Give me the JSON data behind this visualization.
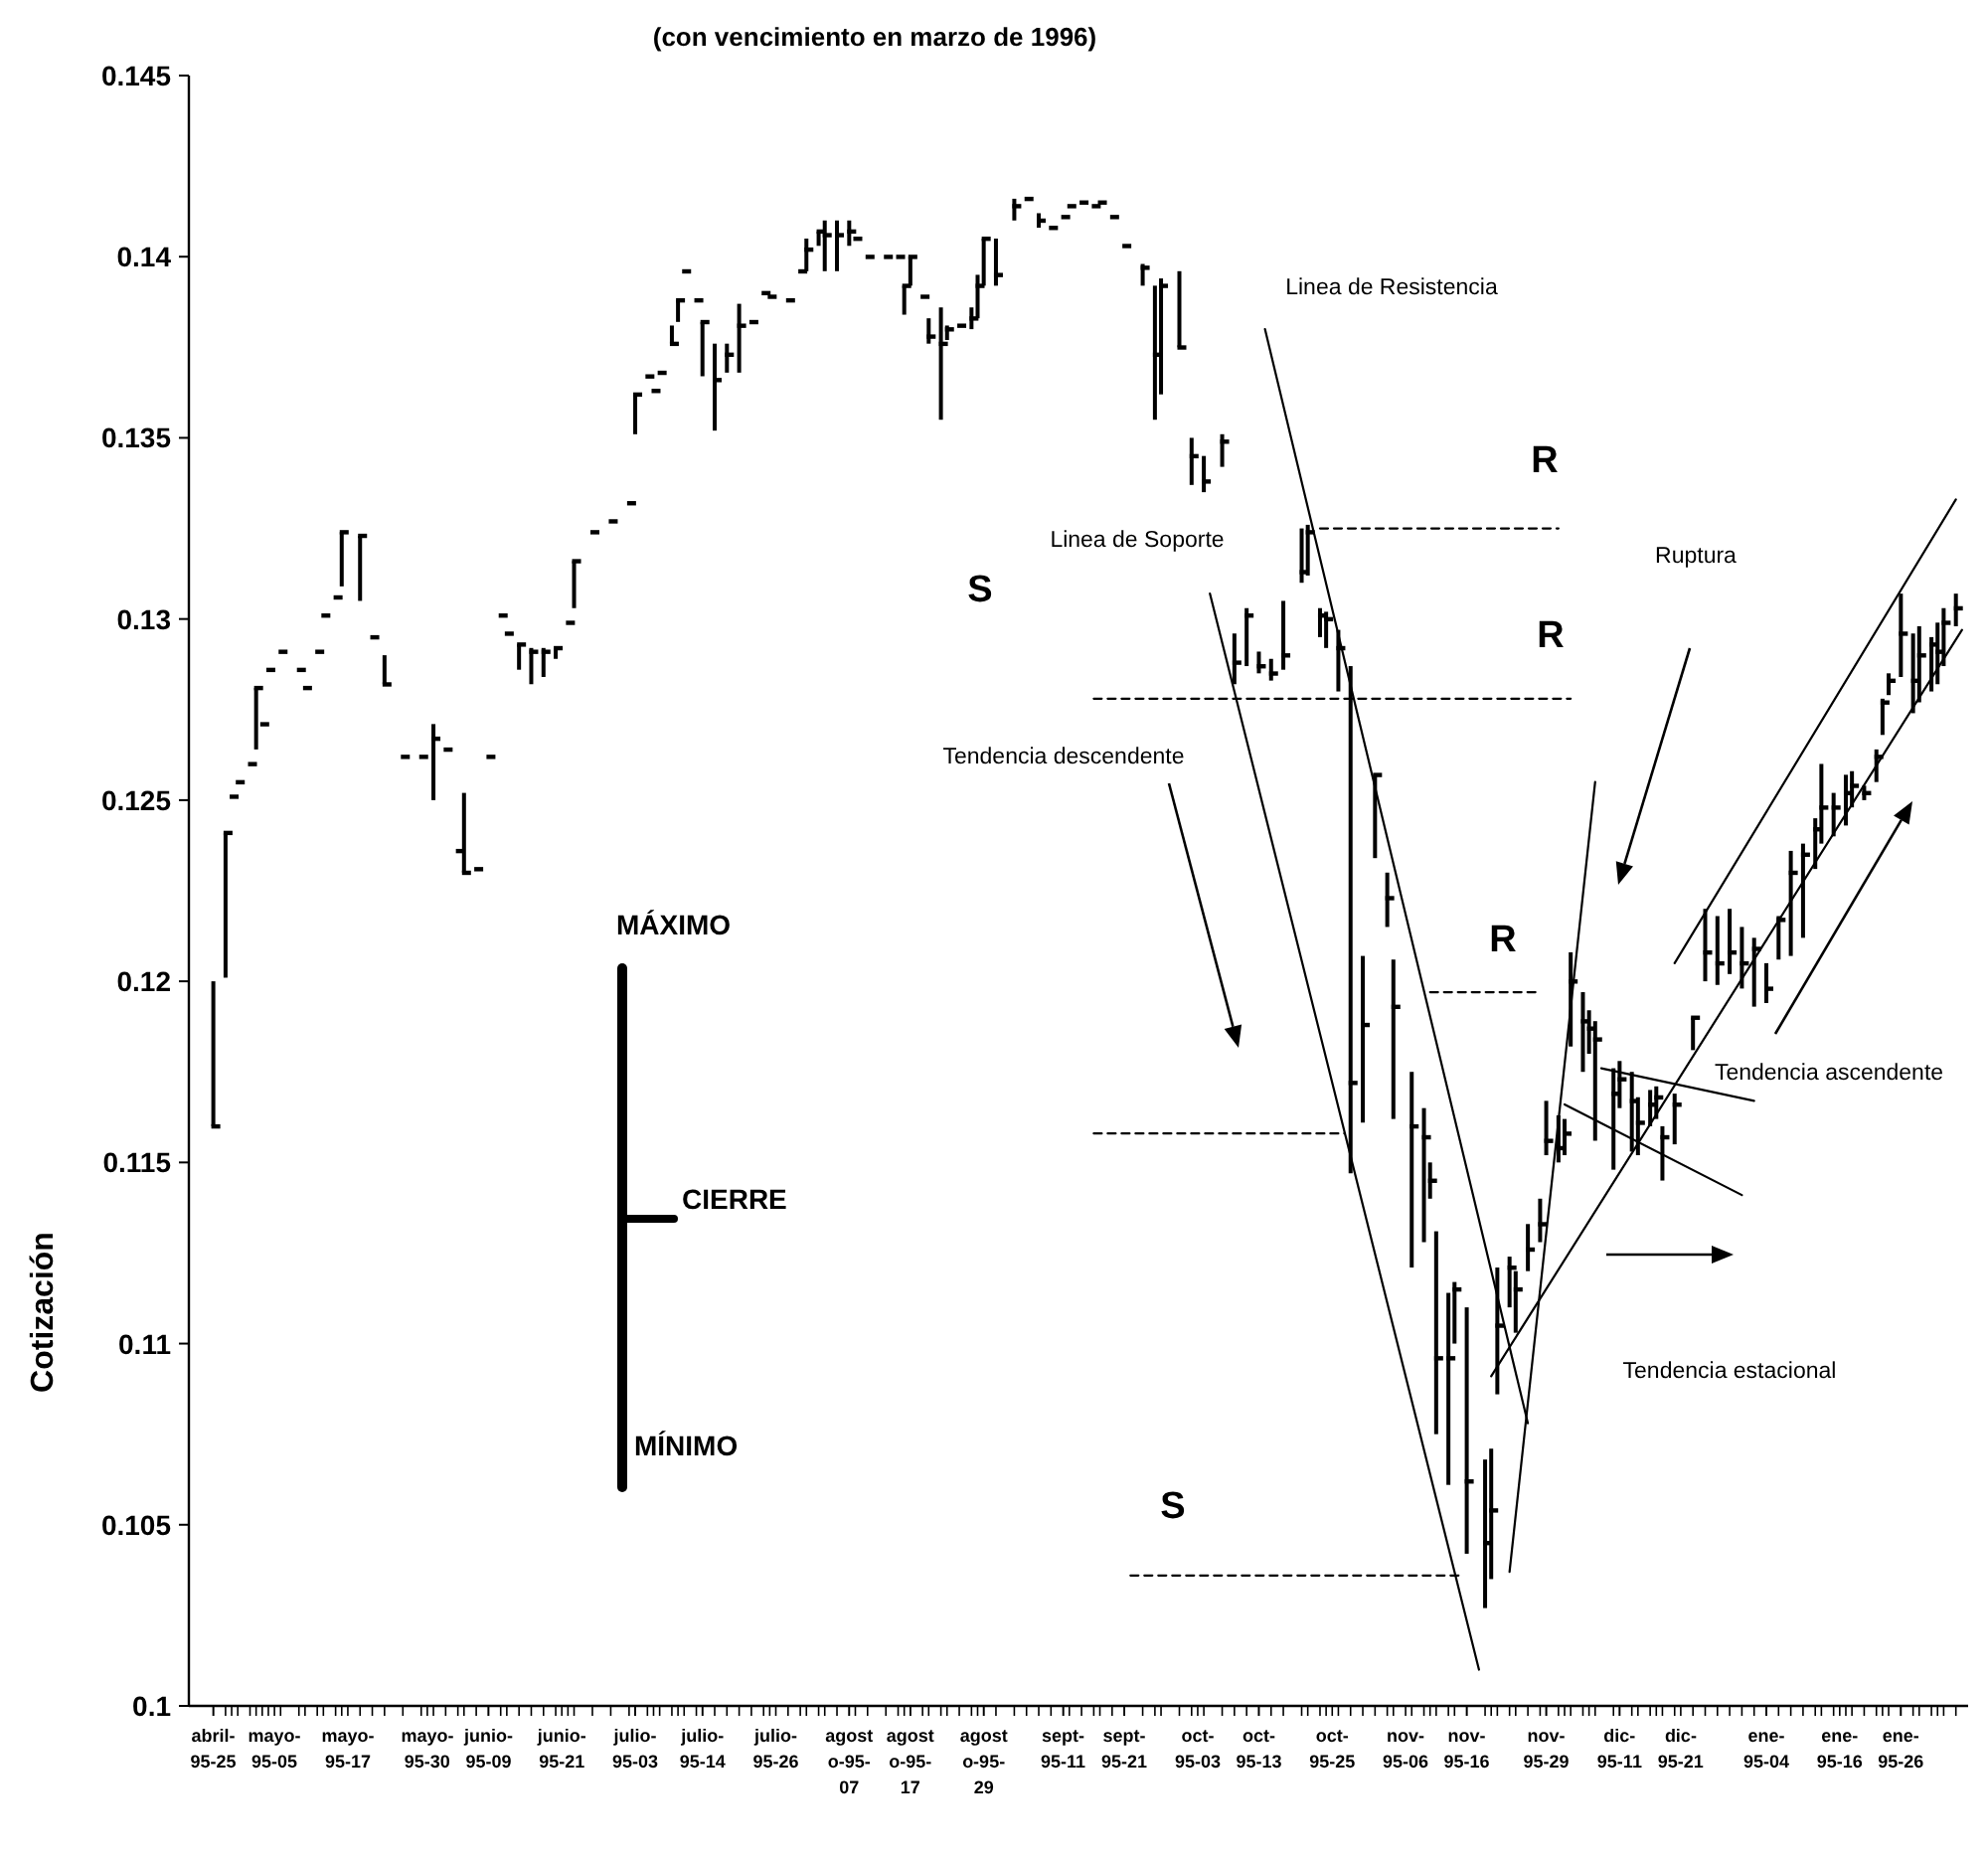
{
  "chart_data": {
    "type": "bar",
    "title": "(con vencimiento en marzo de 1996)",
    "ylabel": "Cotización",
    "x": [
      "1995-04-25",
      "1995-04-27",
      "1995-04-28",
      "1995-04-29",
      "1995-05-01",
      "1995-05-02",
      "1995-05-03",
      "1995-05-04",
      "1995-05-06",
      "1995-05-09",
      "1995-05-10",
      "1995-05-12",
      "1995-05-13",
      "1995-05-15",
      "1995-05-16",
      "1995-05-19",
      "1995-05-21",
      "1995-05-23",
      "1995-05-26",
      "1995-05-29",
      "1995-05-31",
      "1995-06-02",
      "1995-06-04",
      "1995-06-05",
      "1995-06-07",
      "1995-06-09",
      "1995-06-11",
      "1995-06-12",
      "1995-06-14",
      "1995-06-16",
      "1995-06-18",
      "1995-06-20",
      "1995-06-22",
      "1995-06-23",
      "1995-06-26",
      "1995-06-29",
      "1995-07-02",
      "1995-07-03",
      "1995-07-05",
      "1995-07-06",
      "1995-07-07",
      "1995-07-09",
      "1995-07-10",
      "1995-07-11",
      "1995-07-13",
      "1995-07-14",
      "1995-07-16",
      "1995-07-18",
      "1995-07-20",
      "1995-07-22",
      "1995-07-24",
      "1995-07-25",
      "1995-07-28",
      "1995-07-30",
      "1995-07-31",
      "1995-08-02",
      "1995-08-03",
      "1995-08-05",
      "1995-08-07",
      "1995-08-08",
      "1995-08-10",
      "1995-08-13",
      "1995-08-15",
      "1995-08-16",
      "1995-08-17",
      "1995-08-19",
      "1995-08-20",
      "1995-08-22",
      "1995-08-23",
      "1995-08-25",
      "1995-08-27",
      "1995-08-28",
      "1995-08-29",
      "1995-08-31",
      "1995-09-03",
      "1995-09-05",
      "1995-09-07",
      "1995-09-09",
      "1995-09-11",
      "1995-09-12",
      "1995-09-14",
      "1995-09-16",
      "1995-09-17",
      "1995-09-19",
      "1995-09-21",
      "1995-09-24",
      "1995-09-26",
      "1995-09-27",
      "1995-09-30",
      "1995-10-02",
      "1995-10-04",
      "1995-10-07",
      "1995-10-09",
      "1995-10-11",
      "1995-10-13",
      "1995-10-15",
      "1995-10-17",
      "1995-10-20",
      "1995-10-21",
      "1995-10-23",
      "1995-10-24",
      "1995-10-26",
      "1995-10-28",
      "1995-10-30",
      "1995-11-01",
      "1995-11-03",
      "1995-11-04",
      "1995-11-07",
      "1995-11-09",
      "1995-11-10",
      "1995-11-11",
      "1995-11-13",
      "1995-11-14",
      "1995-11-16",
      "1995-11-19",
      "1995-11-20",
      "1995-11-21",
      "1995-11-23",
      "1995-11-24",
      "1995-11-26",
      "1995-11-28",
      "1995-11-29",
      "1995-12-01",
      "1995-12-02",
      "1995-12-03",
      "1995-12-05",
      "1995-12-06",
      "1995-12-07",
      "1995-12-10",
      "1995-12-11",
      "1995-12-13",
      "1995-12-14",
      "1995-12-16",
      "1995-12-17",
      "1995-12-18",
      "1995-12-20",
      "1995-12-23",
      "1995-12-25",
      "1995-12-27",
      "1995-12-29",
      "1995-12-31",
      "1996-01-02",
      "1996-01-04",
      "1996-01-06",
      "1996-01-08",
      "1996-01-10",
      "1996-01-12",
      "1996-01-13",
      "1996-01-15",
      "1996-01-17",
      "1996-01-18",
      "1996-01-20",
      "1996-01-22",
      "1996-01-23",
      "1996-01-24",
      "1996-01-26",
      "1996-01-28",
      "1996-01-29",
      "1996-01-31",
      "1996-02-01",
      "1996-02-02",
      "1996-02-04"
    ],
    "base": [
      0.116,
      0.1201,
      null,
      null,
      null,
      0.1264,
      null,
      null,
      null,
      null,
      null,
      null,
      null,
      null,
      0.1309,
      0.1305,
      null,
      0.1282,
      null,
      null,
      0.125,
      null,
      null,
      0.123,
      null,
      null,
      null,
      null,
      0.1286,
      0.1282,
      0.1284,
      0.1289,
      null,
      0.1303,
      null,
      null,
      null,
      0.1351,
      null,
      null,
      null,
      0.1376,
      0.1382,
      null,
      null,
      0.1367,
      0.1352,
      0.1368,
      0.1368,
      null,
      null,
      null,
      null,
      null,
      0.1396,
      0.1403,
      0.1396,
      0.1396,
      0.1403,
      null,
      null,
      null,
      null,
      0.1384,
      0.1392,
      null,
      0.1376,
      0.1355,
      0.1377,
      null,
      0.138,
      0.1383,
      0.1392,
      0.1392,
      0.141,
      null,
      0.1408,
      null,
      null,
      null,
      null,
      null,
      null,
      null,
      null,
      0.1392,
      0.1355,
      0.1362,
      0.1375,
      0.1337,
      0.1335,
      0.1342,
      0.1282,
      0.1287,
      0.1285,
      0.1283,
      0.1286,
      0.131,
      0.1312,
      0.1295,
      0.1292,
      0.128,
      0.1147,
      0.1161,
      0.1234,
      0.1215,
      0.1162,
      0.1121,
      0.1128,
      0.114,
      0.1075,
      0.1061,
      0.11,
      0.1042,
      0.1027,
      0.1035,
      0.1086,
      0.111,
      0.1103,
      0.112,
      0.1128,
      0.1152,
      0.115,
      0.1152,
      0.1182,
      0.1175,
      0.118,
      0.1156,
      0.1148,
      0.1165,
      0.1153,
      0.1152,
      0.116,
      0.1162,
      0.1145,
      0.1155,
      0.1181,
      0.12,
      0.1199,
      0.1202,
      0.1198,
      0.1193,
      0.1194,
      0.1206,
      0.1207,
      0.1212,
      0.1231,
      0.1238,
      0.124,
      0.1243,
      0.1248,
      0.125,
      0.1255,
      0.1268,
      0.1279,
      0.1284,
      0.1274,
      0.1277,
      0.128,
      0.1282,
      0.1287,
      0.1298
    ],
    "color": "#000000",
    "values": [
      0.004,
      0.004,
      null,
      null,
      null,
      0.0017,
      null,
      null,
      null,
      null,
      null,
      null,
      null,
      null,
      0.0015,
      0.0018,
      null,
      0.0008,
      null,
      null,
      0.0021,
      null,
      null,
      0.0022,
      null,
      null,
      null,
      null,
      0.0007,
      0.001,
      0.0008,
      0.0003,
      null,
      0.0013,
      null,
      null,
      null,
      0.0011,
      null,
      null,
      null,
      0.0005,
      0.0006,
      null,
      null,
      0.0015,
      0.0024,
      0.0008,
      0.0019,
      null,
      null,
      null,
      null,
      null,
      0.0009,
      0.0004,
      0.0014,
      0.0014,
      0.0007,
      null,
      null,
      null,
      null,
      0.0008,
      0.0008,
      null,
      0.0007,
      0.0031,
      0.0004,
      null,
      0.0006,
      0.0012,
      0.0013,
      0.0013,
      0.0006,
      null,
      0.0004,
      null,
      null,
      null,
      null,
      null,
      null,
      null,
      null,
      0.0006,
      0.0037,
      0.0032,
      0.0021,
      0.0013,
      0.001,
      0.0009,
      0.0014,
      0.0016,
      0.0006,
      0.0006,
      0.0019,
      0.0015,
      0.0014,
      0.0008,
      0.001,
      0.0017,
      0.014,
      0.0046,
      0.0023,
      0.0015,
      0.0044,
      0.0054,
      0.0037,
      0.001,
      0.0056,
      0.0053,
      0.0017,
      0.0068,
      0.0041,
      0.0036,
      0.0035,
      0.0014,
      0.0017,
      0.0013,
      0.0012,
      0.0015,
      0.0013,
      0.001,
      0.0026,
      0.0022,
      0.0012,
      0.0033,
      0.0028,
      0.0013,
      0.0022,
      0.0016,
      0.001,
      0.0009,
      0.0015,
      0.0014,
      0.0009,
      0.002,
      0.0019,
      0.0018,
      0.0017,
      0.0019,
      0.0011,
      0.0012,
      0.0029,
      0.0026,
      0.0014,
      0.0022,
      0.0012,
      0.0014,
      0.001,
      0.0004,
      0.0009,
      0.001,
      0.0006,
      0.0023,
      0.0022,
      0.0021,
      0.0015,
      0.0017,
      0.0016,
      0.0009
    ],
    "series": [
      {
        "type": "scatter",
        "values": [
          0.116,
          0.1241,
          0.1251,
          0.1255,
          0.126,
          0.1281,
          0.1271,
          0.1286,
          0.1291,
          0.1286,
          0.1281,
          0.1291,
          0.1301,
          0.1306,
          0.1324,
          0.1323,
          0.1295,
          0.1282,
          0.1262,
          0.1262,
          0.1267,
          0.1264,
          0.1236,
          0.123,
          0.1231,
          0.1262,
          0.1301,
          0.1296,
          0.1293,
          0.1291,
          0.1291,
          0.1292,
          0.1299,
          0.1316,
          0.1324,
          0.1327,
          0.1332,
          0.1362,
          0.1367,
          0.1363,
          0.1368,
          0.1376,
          0.1388,
          0.1396,
          0.1388,
          0.1382,
          0.1366,
          0.1373,
          0.1381,
          0.1382,
          0.139,
          0.1389,
          0.1388,
          0.1396,
          0.1402,
          0.1407,
          0.1406,
          0.1406,
          0.1407,
          0.1405,
          0.14,
          0.14,
          0.14,
          0.1392,
          0.14,
          0.1389,
          0.1378,
          0.1376,
          0.138,
          0.1381,
          0.1383,
          0.1392,
          0.1405,
          0.1395,
          0.1414,
          0.1416,
          0.141,
          0.1408,
          0.1411,
          0.1414,
          0.1415,
          0.1414,
          0.1415,
          0.1411,
          0.1403,
          0.1397,
          0.1373,
          0.1392,
          0.1375,
          0.1345,
          0.1338,
          0.1349,
          0.1288,
          0.1301,
          0.1287,
          0.1285,
          0.129,
          0.1313,
          0.1324,
          0.1301,
          0.13,
          0.1292,
          0.1172,
          0.1188,
          0.1257,
          0.1223,
          0.1193,
          0.116,
          0.1157,
          0.1145,
          0.1096,
          0.1096,
          0.1115,
          0.1062,
          0.1045,
          0.1054,
          0.1105,
          0.1121,
          0.1115,
          0.1126,
          0.1133,
          0.1156,
          0.1154,
          0.1158,
          0.12,
          0.1189,
          0.1187,
          0.1184,
          0.1169,
          0.1173,
          0.1167,
          0.1161,
          0.1166,
          0.1168,
          0.1157,
          0.1166,
          0.119,
          0.1208,
          0.1205,
          0.1208,
          0.1205,
          0.1209,
          0.1198,
          0.1217,
          0.123,
          0.1235,
          0.1242,
          0.1248,
          0.1248,
          0.1252,
          0.1254,
          0.1252,
          0.1262,
          0.1277,
          0.1283,
          0.1296,
          0.1283,
          0.129,
          0.1293,
          0.1291,
          0.1299,
          0.1303
        ],
        "color": "#000000"
      },
      {
        "type": "line",
        "x": [
          "1995-10-14",
          "1995-11-26"
        ],
        "values": [
          0.138,
          0.1078
        ],
        "color": "#000000",
        "line_style": "solid"
      },
      {
        "type": "line",
        "x": [
          "1995-10-05",
          "1995-11-18"
        ],
        "values": [
          0.1307,
          0.101
        ],
        "color": "#000000",
        "line_style": "solid"
      },
      {
        "type": "line",
        "x": [
          "1995-11-23",
          "1995-12-07"
        ],
        "values": [
          0.1037,
          0.1255
        ],
        "color": "#000000",
        "line_style": "solid"
      },
      {
        "type": "line",
        "x": [
          "1995-11-20",
          "1996-02-05"
        ],
        "values": [
          0.1091,
          0.1297
        ],
        "color": "#000000",
        "line_style": "solid"
      },
      {
        "type": "line",
        "x": [
          "1995-12-20",
          "1996-02-04"
        ],
        "values": [
          0.1205,
          0.1333
        ],
        "color": "#000000",
        "line_style": "solid"
      },
      {
        "type": "line",
        "x": [
          "1995-12-08",
          "1996-01-02"
        ],
        "values": [
          0.1176,
          0.1167
        ],
        "color": "#000000",
        "line_style": "solid"
      },
      {
        "type": "line",
        "x": [
          "1995-12-02",
          "1995-12-31"
        ],
        "values": [
          0.1166,
          0.1141
        ],
        "color": "#000000",
        "line_style": "solid"
      },
      {
        "type": "line",
        "x": [
          "1995-10-23",
          "1995-12-01"
        ],
        "values": [
          0.1325,
          0.1325
        ],
        "color": "#000000",
        "line_style": "dashed"
      },
      {
        "type": "line",
        "x": [
          "1995-09-16",
          "1995-12-03"
        ],
        "values": [
          0.1278,
          0.1278
        ],
        "color": "#000000",
        "line_style": "dashed"
      },
      {
        "type": "line",
        "x": [
          "1995-11-10",
          "1995-11-28"
        ],
        "values": [
          0.1197,
          0.1197
        ],
        "color": "#000000",
        "line_style": "dashed"
      },
      {
        "type": "line",
        "x": [
          "1995-09-16",
          "1995-10-27"
        ],
        "values": [
          0.1158,
          0.1158
        ],
        "color": "#000000",
        "line_style": "dashed"
      },
      {
        "type": "line",
        "x": [
          "1995-09-22",
          "1995-11-15"
        ],
        "values": [
          0.1036,
          0.1036
        ],
        "color": "#000000",
        "line_style": "dashed"
      }
    ],
    "xlim": [
      "1995-04-21",
      "1996-02-06"
    ],
    "xticks": [
      {
        "value": "1995-04-25",
        "label": "abril-95-25"
      },
      {
        "value": "1995-05-05",
        "label": "mayo-95-05"
      },
      {
        "value": "1995-05-17",
        "label": "mayo-95-17"
      },
      {
        "value": "1995-05-30",
        "label": "mayo-95-30"
      },
      {
        "value": "1995-06-09",
        "label": "junio-95-09"
      },
      {
        "value": "1995-06-21",
        "label": "junio-95-21"
      },
      {
        "value": "1995-07-03",
        "label": "julio-95-03"
      },
      {
        "value": "1995-07-14",
        "label": "julio-95-14"
      },
      {
        "value": "1995-07-26",
        "label": "julio-95-26"
      },
      {
        "value": "1995-08-07",
        "label": "agosto-95-07"
      },
      {
        "value": "1995-08-17",
        "label": "agosto-95-17"
      },
      {
        "value": "1995-08-29",
        "label": "agosto-95-29"
      },
      {
        "value": "1995-09-11",
        "label": "sept-95-11"
      },
      {
        "value": "1995-09-21",
        "label": "sept-95-21"
      },
      {
        "value": "1995-10-03",
        "label": "oct-95-03"
      },
      {
        "value": "1995-10-13",
        "label": "oct-95-13"
      },
      {
        "value": "1995-10-25",
        "label": "oct-95-25"
      },
      {
        "value": "1995-11-06",
        "label": "nov-95-06"
      },
      {
        "value": "1995-11-16",
        "label": "nov-95-16"
      },
      {
        "value": "1995-11-29",
        "label": "nov-95-29"
      },
      {
        "value": "1995-12-11",
        "label": "dic-95-11"
      },
      {
        "value": "1995-12-21",
        "label": "dic-95-21"
      },
      {
        "value": "1996-01-04",
        "label": "ene-95-04"
      },
      {
        "value": "1996-01-16",
        "label": "ene-95-16"
      },
      {
        "value": "1996-01-26",
        "label": "ene-95-26"
      }
    ],
    "ylim": [
      0.1,
      0.145
    ],
    "yticks": [
      0.1,
      0.105,
      0.11,
      0.115,
      0.12,
      0.125,
      0.13,
      0.135,
      0.14,
      0.145
    ],
    "annotations": [
      "Linea de Resistencia",
      "Linea de Soporte",
      "S",
      "R",
      "R",
      "R",
      "S",
      "Ruptura",
      "Tendencia descendente",
      "Tendencia ascendente",
      "Tendencia estacional",
      "MÁXIMO",
      "CIERRE",
      "MÍNIMO"
    ]
  }
}
